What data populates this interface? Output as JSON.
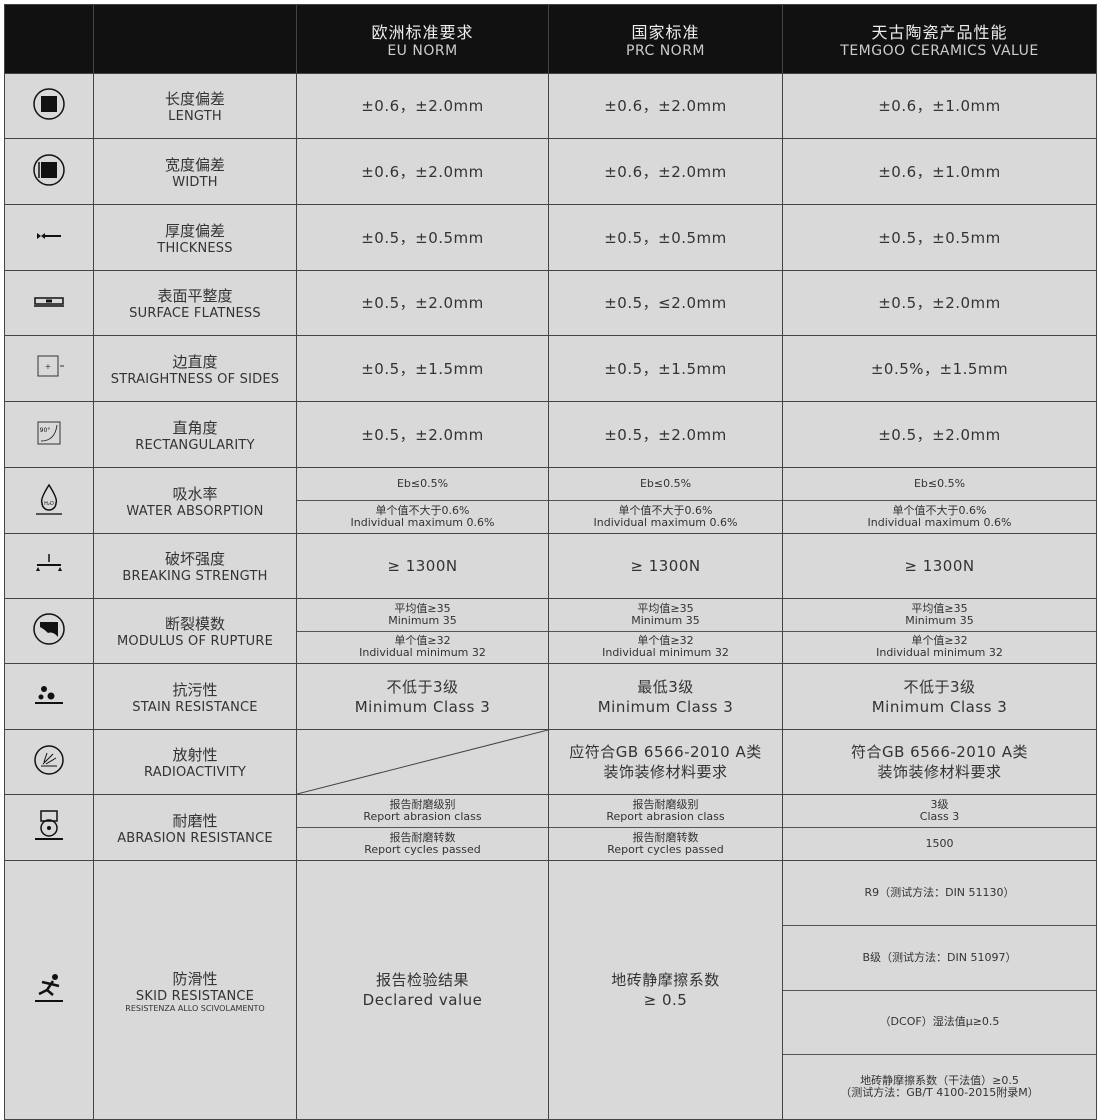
{
  "header": [
    {
      "zh": "",
      "en": ""
    },
    {
      "zh": "",
      "en": ""
    },
    {
      "zh": "欧洲标准要求",
      "en": "EU NORM"
    },
    {
      "zh": "国家标准",
      "en": "PRC NORM"
    },
    {
      "zh": "天古陶瓷产品性能",
      "en": "TEMGOO CERAMICS VALUE"
    }
  ],
  "rows": [
    {
      "icon": "square-length-icon",
      "zh": "长度偏差",
      "en": "LENGTH",
      "h": 64,
      "cells": [
        {
          "subs": [
            [
              "±0.6，±2.0mm"
            ]
          ]
        },
        {
          "subs": [
            [
              "±0.6，±2.0mm"
            ]
          ]
        },
        {
          "subs": [
            [
              "±0.6，±1.0mm"
            ]
          ]
        }
      ]
    },
    {
      "icon": "square-width-icon",
      "zh": "宽度偏差",
      "en": "WIDTH",
      "h": 65,
      "cells": [
        {
          "subs": [
            [
              "±0.6，±2.0mm"
            ]
          ]
        },
        {
          "subs": [
            [
              "±0.6，±2.0mm"
            ]
          ]
        },
        {
          "subs": [
            [
              "±0.6，±1.0mm"
            ]
          ]
        }
      ]
    },
    {
      "icon": "thickness-icon",
      "zh": "厚度偏差",
      "en": "THICKNESS",
      "h": 65,
      "cells": [
        {
          "subs": [
            [
              "±0.5，±0.5mm"
            ]
          ]
        },
        {
          "subs": [
            [
              "±0.5，±0.5mm"
            ]
          ]
        },
        {
          "subs": [
            [
              "±0.5，±0.5mm"
            ]
          ]
        }
      ]
    },
    {
      "icon": "level-icon",
      "zh": "表面平整度",
      "en": "SURFACE FLATNESS",
      "h": 64,
      "cells": [
        {
          "subs": [
            [
              "±0.5，±2.0mm"
            ]
          ]
        },
        {
          "subs": [
            [
              "±0.5，≤2.0mm"
            ]
          ]
        },
        {
          "subs": [
            [
              "±0.5，±2.0mm"
            ]
          ]
        }
      ]
    },
    {
      "icon": "straightness-icon",
      "zh": "边直度",
      "en": "STRAIGHTNESS OF SIDES",
      "h": 65,
      "cells": [
        {
          "subs": [
            [
              "±0.5，±1.5mm"
            ]
          ]
        },
        {
          "subs": [
            [
              "±0.5，±1.5mm"
            ]
          ]
        },
        {
          "subs": [
            [
              "±0.5%，±1.5mm"
            ]
          ]
        }
      ]
    },
    {
      "icon": "right-angle-icon",
      "zh": "直角度",
      "en": "RECTANGULARITY",
      "h": 65,
      "cells": [
        {
          "subs": [
            [
              "±0.5，±2.0mm"
            ]
          ]
        },
        {
          "subs": [
            [
              "±0.5，±2.0mm"
            ]
          ]
        },
        {
          "subs": [
            [
              "±0.5，±2.0mm"
            ]
          ]
        }
      ]
    },
    {
      "icon": "water-drop-icon",
      "zh": "吸水率",
      "en": "WATER ABSORPTION",
      "h": 65,
      "small": true,
      "cells": [
        {
          "subs": [
            [
              "Eb≤0.5%"
            ],
            [
              "单个值不大于0.6%",
              "Individual maximum 0.6%"
            ]
          ]
        },
        {
          "subs": [
            [
              "Eb≤0.5%"
            ],
            [
              "单个值不大于0.6%",
              "Individual maximum 0.6%"
            ]
          ]
        },
        {
          "subs": [
            [
              "Eb≤0.5%"
            ],
            [
              "单个值不大于0.6%",
              "Individual maximum 0.6%"
            ]
          ]
        }
      ]
    },
    {
      "icon": "breaking-load-icon",
      "zh": "破坏强度",
      "en": "BREAKING STRENGTH",
      "h": 64,
      "cells": [
        {
          "subs": [
            [
              "≥ 1300N"
            ]
          ]
        },
        {
          "subs": [
            [
              "≥ 1300N"
            ]
          ]
        },
        {
          "subs": [
            [
              "≥  1300N"
            ]
          ]
        }
      ]
    },
    {
      "icon": "rupture-icon",
      "zh": "断裂模数",
      "en": "MODULUS OF RUPTURE",
      "h": 64,
      "small": true,
      "cells": [
        {
          "subs": [
            [
              "平均值≥35",
              "Minimum 35"
            ],
            [
              "单个值≥32",
              "Individual minimum 32"
            ]
          ]
        },
        {
          "subs": [
            [
              "平均值≥35",
              "Minimum 35"
            ],
            [
              "单个值≥32",
              "Individual minimum 32"
            ]
          ]
        },
        {
          "subs": [
            [
              "平均值≥35",
              "Minimum 35"
            ],
            [
              "单个值≥32",
              "Individual minimum 32"
            ]
          ]
        }
      ]
    },
    {
      "icon": "stain-icon",
      "zh": "抗污性",
      "en": "STAIN  RESISTANCE",
      "h": 65,
      "cells": [
        {
          "subs": [
            [
              "不低于3级",
              "Minimum Class 3"
            ]
          ]
        },
        {
          "subs": [
            [
              "最低3级",
              "Minimum Class 3"
            ]
          ]
        },
        {
          "subs": [
            [
              "不低于3级",
              "Minimum Class 3"
            ]
          ]
        }
      ]
    },
    {
      "icon": "radiation-icon",
      "zh": "放射性",
      "en": "RADIOACTIVITY",
      "h": 64,
      "cells": [
        {
          "diagonal": true,
          "subs": []
        },
        {
          "subs": [
            [
              "应符合GB 6566-2010 A类",
              "装饰装修材料要求"
            ]
          ]
        },
        {
          "subs": [
            [
              "符合GB 6566-2010 A类",
              "装饰装修材料要求"
            ]
          ]
        }
      ]
    },
    {
      "icon": "abrasion-wheel-icon",
      "zh": "耐磨性",
      "en": "ABRASION RESISTANCE",
      "h": 65,
      "small": true,
      "cells": [
        {
          "subs": [
            [
              "报告耐磨级别",
              "Report abrasion class"
            ],
            [
              "报告耐磨转数",
              "Report cycles passed"
            ]
          ]
        },
        {
          "subs": [
            [
              "报告耐磨级别",
              "Report abrasion class"
            ],
            [
              "报告耐磨转数",
              "Report cycles passed"
            ]
          ]
        },
        {
          "subs": [
            [
              "3级",
              "Class 3"
            ],
            [
              "1500"
            ]
          ]
        }
      ]
    },
    {
      "icon": "slip-icon",
      "zh": "防滑性",
      "en": "SKID RESISTANCE",
      "en2": "RESISTENZA ALLO SCIVOLAMENTO",
      "h": 258,
      "cells": [
        {
          "subs": [
            [
              "报告检验结果",
              "Declared value"
            ]
          ]
        },
        {
          "subs": [
            [
              "地砖静摩擦系数",
              "≥  0.5"
            ]
          ]
        },
        {
          "small": true,
          "subs": [
            [
              "R9（测试方法：DIN 51130）"
            ],
            [
              "B级（测试方法：DIN 51097）"
            ],
            [
              "（DCOF）湿法值μ≥0.5"
            ],
            [
              "地砖静摩擦系数（干法值）≥0.5",
              "（测试方法：GB/T 4100-2015附录M）"
            ]
          ]
        }
      ]
    }
  ]
}
